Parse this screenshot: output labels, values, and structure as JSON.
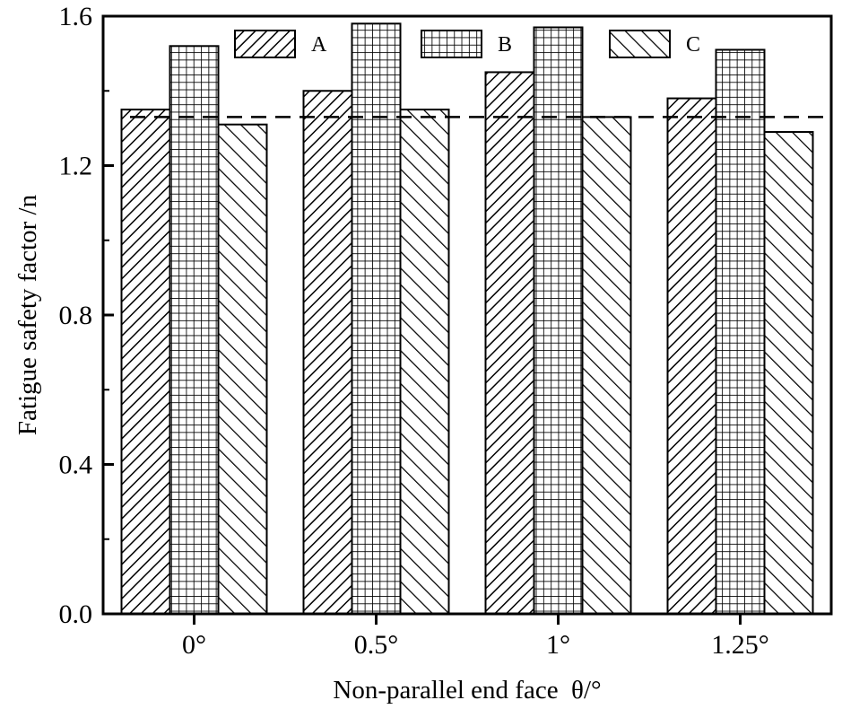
{
  "chart_data": {
    "type": "bar",
    "title": "",
    "xlabel": "Non-parallel end face  θ/°",
    "ylabel": "Fatigue safety factor /n",
    "categories": [
      "0°",
      "0.5°",
      "1°",
      "1.25°"
    ],
    "series": [
      {
        "name": "A",
        "pattern": "diagonal-right",
        "values": [
          1.35,
          1.4,
          1.45,
          1.38
        ]
      },
      {
        "name": "B",
        "pattern": "grid",
        "values": [
          1.52,
          1.58,
          1.57,
          1.51
        ]
      },
      {
        "name": "C",
        "pattern": "diagonal-left",
        "values": [
          1.31,
          1.35,
          1.33,
          1.29
        ]
      }
    ],
    "reference_line": {
      "value": 1.33,
      "style": "dashed"
    },
    "ylim": [
      0,
      1.6
    ],
    "yticks": [
      "0.0",
      "0.4",
      "0.8",
      "1.2",
      "1.6"
    ],
    "legend": {
      "placement": "top-center",
      "orientation": "horizontal"
    },
    "grid": false,
    "colors": {
      "bar_stroke": "#000000",
      "bar_fill": "#ffffff",
      "hatch": "#000000"
    }
  }
}
